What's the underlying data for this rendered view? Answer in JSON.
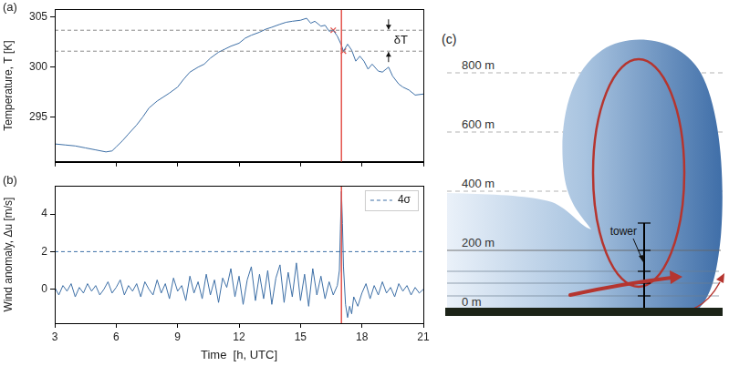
{
  "chart_data": [
    {
      "panel": "(a)",
      "type": "line",
      "ylabel": "Temperature, T [K]",
      "color": "#3d6fa6",
      "x": [
        3,
        3.5,
        4,
        4.5,
        5,
        5.5,
        5.8,
        6,
        6.3,
        6.6,
        7,
        7.3,
        7.6,
        8,
        8.3,
        8.6,
        9,
        9.3,
        9.6,
        10,
        10.3,
        10.6,
        11,
        11.3,
        11.6,
        12,
        12.3,
        12.6,
        13,
        13.3,
        13.6,
        14,
        14.3,
        14.6,
        15,
        15.3,
        15.5,
        15.7,
        16,
        16.2,
        16.4,
        16.6,
        16.8,
        17,
        17.1,
        17.3,
        17.5,
        17.7,
        17.9,
        18.1,
        18.3,
        18.5,
        18.8,
        19,
        19.3,
        19.5,
        19.8,
        20,
        20.3,
        20.6,
        21
      ],
      "values": [
        292.3,
        292.2,
        292.1,
        291.9,
        291.7,
        291.5,
        291.6,
        292.0,
        292.6,
        293.3,
        294.2,
        295.0,
        295.9,
        296.6,
        297.0,
        297.4,
        298.0,
        298.8,
        299.5,
        300.0,
        300.3,
        300.9,
        301.5,
        301.8,
        302.1,
        302.4,
        302.9,
        303.2,
        303.5,
        303.8,
        304.0,
        304.3,
        304.5,
        304.6,
        304.7,
        304.9,
        304.4,
        304.6,
        304.1,
        304.2,
        303.6,
        303.7,
        303.1,
        302.2,
        301.6,
        302.3,
        301.7,
        300.6,
        301.1,
        300.6,
        299.8,
        300.3,
        299.6,
        299.5,
        300.0,
        299.1,
        298.3,
        298.0,
        297.7,
        297.2,
        297.3
      ],
      "xlim": [
        3,
        21
      ],
      "ylim": [
        290.5,
        305.8
      ],
      "xticks": [
        3,
        6,
        9,
        12,
        15,
        18,
        21
      ],
      "yticks": [
        295,
        300,
        305
      ],
      "grid": false,
      "tick_labels": "y",
      "hlines": [
        {
          "y": 303.7,
          "color": "#8c8c8c",
          "line_style": "dashed"
        },
        {
          "y": 301.6,
          "color": "#8c8c8c",
          "line_style": "dashed"
        }
      ],
      "vline": {
        "x": 17.0,
        "color": "#e4534d"
      },
      "points": {
        "x": [
          16.6,
          17.1
        ],
        "y": [
          303.7,
          301.6
        ],
        "color": "#e4534d",
        "marker": "x"
      },
      "annotation": {
        "text": "δT",
        "x": 19.3
      }
    },
    {
      "panel": "(b)",
      "type": "line",
      "xlabel": "Time  [h, UTC]",
      "ylabel": "Wind anomaly, Δu [m/s]",
      "color": "#3d6fa6",
      "x": [
        3.0,
        3.2,
        3.4,
        3.6,
        3.8,
        4.0,
        4.2,
        4.4,
        4.6,
        4.8,
        5.0,
        5.2,
        5.4,
        5.6,
        5.8,
        6.0,
        6.2,
        6.4,
        6.6,
        6.8,
        7.0,
        7.2,
        7.4,
        7.6,
        7.8,
        8.0,
        8.2,
        8.4,
        8.6,
        8.8,
        9.0,
        9.2,
        9.4,
        9.6,
        9.8,
        10.0,
        10.2,
        10.4,
        10.6,
        10.8,
        11.0,
        11.2,
        11.4,
        11.6,
        11.8,
        12.0,
        12.2,
        12.4,
        12.6,
        12.8,
        13.0,
        13.2,
        13.4,
        13.6,
        13.8,
        14.0,
        14.2,
        14.4,
        14.6,
        14.8,
        15.0,
        15.2,
        15.4,
        15.6,
        15.8,
        16.0,
        16.2,
        16.4,
        16.6,
        16.8,
        16.9,
        16.95,
        17.0,
        17.05,
        17.1,
        17.2,
        17.3,
        17.4,
        17.5,
        17.6,
        17.8,
        18.0,
        18.2,
        18.4,
        18.6,
        18.8,
        19.0,
        19.2,
        19.4,
        19.6,
        19.8,
        20.0,
        20.2,
        20.4,
        20.6,
        20.8,
        21.0
      ],
      "values": [
        0.1,
        -0.3,
        0.2,
        -0.1,
        0.3,
        -0.4,
        0.1,
        -0.2,
        0.3,
        -0.1,
        0.2,
        -0.3,
        0.0,
        0.4,
        -0.2,
        0.1,
        0.5,
        -0.3,
        0.2,
        -0.1,
        0.3,
        -0.4,
        0.4,
        0.0,
        -0.3,
        0.5,
        -0.2,
        0.3,
        -0.5,
        0.6,
        -0.1,
        0.2,
        -0.6,
        0.7,
        -0.2,
        0.4,
        -0.5,
        0.8,
        -0.3,
        0.5,
        -0.7,
        0.6,
        0.1,
        1.1,
        -0.4,
        0.7,
        -0.8,
        0.5,
        1.2,
        -0.6,
        0.8,
        -0.5,
        1.0,
        -0.8,
        0.6,
        1.3,
        -0.7,
        0.9,
        -0.4,
        1.4,
        -0.6,
        0.8,
        -0.9,
        1.1,
        -0.3,
        0.7,
        -0.5,
        0.4,
        -0.3,
        0.2,
        1.0,
        3.2,
        5.2,
        3.5,
        1.2,
        -0.8,
        -1.5,
        -0.9,
        -1.3,
        -0.4,
        -0.9,
        -0.2,
        0.3,
        -0.5,
        0.2,
        -0.3,
        0.4,
        -0.2,
        0.1,
        -0.4,
        0.3,
        -0.1,
        0.2,
        -0.3,
        0.1,
        -0.2,
        0.0
      ],
      "xlim": [
        3,
        21
      ],
      "ylim": [
        -1.8,
        5.5
      ],
      "xticks": [
        3,
        6,
        9,
        12,
        15,
        18,
        21
      ],
      "yticks": [
        0,
        2,
        4
      ],
      "grid": false,
      "legend": "upper right",
      "hlines": [
        {
          "y": 2,
          "name": "4σ",
          "color": "#3d6fa6",
          "line_style": "dashed"
        }
      ],
      "vline": {
        "x": 17.0,
        "color": "#e4534d"
      }
    }
  ],
  "diagram": {
    "panel": "(c)",
    "levels": [
      {
        "value": 800,
        "label": "800 m",
        "line_style": "dashed"
      },
      {
        "value": 600,
        "label": "600 m",
        "line_style": "dashed"
      },
      {
        "value": 400,
        "label": "400 m",
        "line_style": "dashed"
      },
      {
        "value": 200,
        "label": "200 m",
        "line_style": "solid"
      },
      {
        "value": 0,
        "label": "0 m"
      }
    ],
    "tower_label": "tower"
  }
}
